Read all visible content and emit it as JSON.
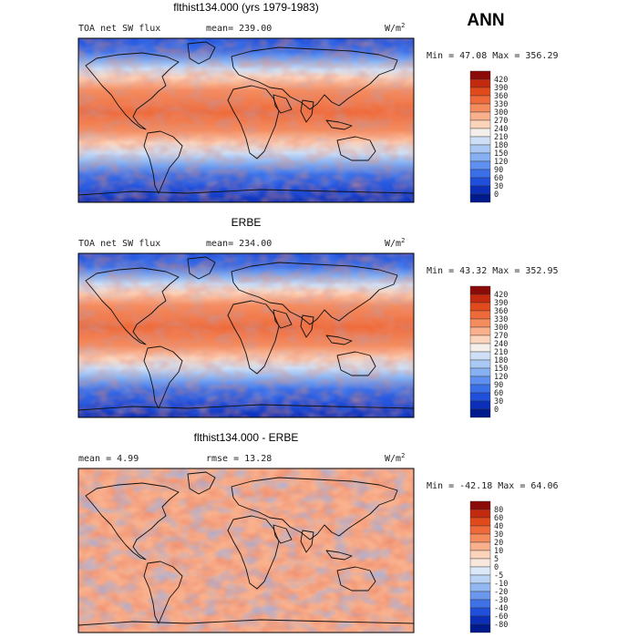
{
  "season": "ANN",
  "panels": [
    {
      "title": "flthist134.000 (yrs 1979-1983)",
      "left_label": "TOA net SW flux",
      "center_label": "mean= 239.00",
      "units": "W/m",
      "units_exp": "2",
      "minmax": "Min = 47.08 Max = 356.29",
      "colorbar_levels": [
        "420",
        "390",
        "360",
        "330",
        "300",
        "270",
        "240",
        "210",
        "180",
        "150",
        "120",
        "90",
        "60",
        "30",
        "0"
      ],
      "colorbar_colors": [
        "#8b0a0a",
        "#c42a10",
        "#e14a1c",
        "#ee6a3a",
        "#f58c5e",
        "#f9b08c",
        "#fcd3bb",
        "#f4efea",
        "#cfe0f6",
        "#a9c8f4",
        "#86b0f1",
        "#5f8ff0",
        "#3a6fe8",
        "#1f4fdb",
        "#0b2fb8",
        "#001a8c"
      ]
    },
    {
      "title": "ERBE",
      "left_label": "TOA net SW flux",
      "center_label": "mean= 234.00",
      "units": "W/m",
      "units_exp": "2",
      "minmax": "Min = 43.32 Max = 352.95",
      "colorbar_levels": [
        "420",
        "390",
        "360",
        "330",
        "300",
        "270",
        "240",
        "210",
        "180",
        "150",
        "120",
        "90",
        "60",
        "30",
        "0"
      ],
      "colorbar_colors": [
        "#8b0a0a",
        "#c42a10",
        "#e14a1c",
        "#ee6a3a",
        "#f58c5e",
        "#f9b08c",
        "#fcd3bb",
        "#f4efea",
        "#cfe0f6",
        "#a9c8f4",
        "#86b0f1",
        "#5f8ff0",
        "#3a6fe8",
        "#1f4fdb",
        "#0b2fb8",
        "#001a8c"
      ]
    },
    {
      "title": "flthist134.000 - ERBE",
      "left_label": "mean =   4.99",
      "center_label": "rmse =  13.28",
      "units": "W/m",
      "units_exp": "2",
      "minmax": "Min = -42.18 Max =  64.06",
      "colorbar_levels": [
        "80",
        "60",
        "40",
        "30",
        "20",
        "10",
        "5",
        "0",
        "-5",
        "-10",
        "-20",
        "-30",
        "-40",
        "-60",
        "-80"
      ],
      "colorbar_colors": [
        "#8b0a0a",
        "#c42a10",
        "#e14a1c",
        "#ee6a3a",
        "#f58c5e",
        "#f9b08c",
        "#fcd3bb",
        "#f8e7dc",
        "#dbe8f8",
        "#b9d3f5",
        "#93b8f1",
        "#6b97ee",
        "#3f72e6",
        "#1f4fdb",
        "#0b2fb8",
        "#001a8c"
      ]
    }
  ]
}
